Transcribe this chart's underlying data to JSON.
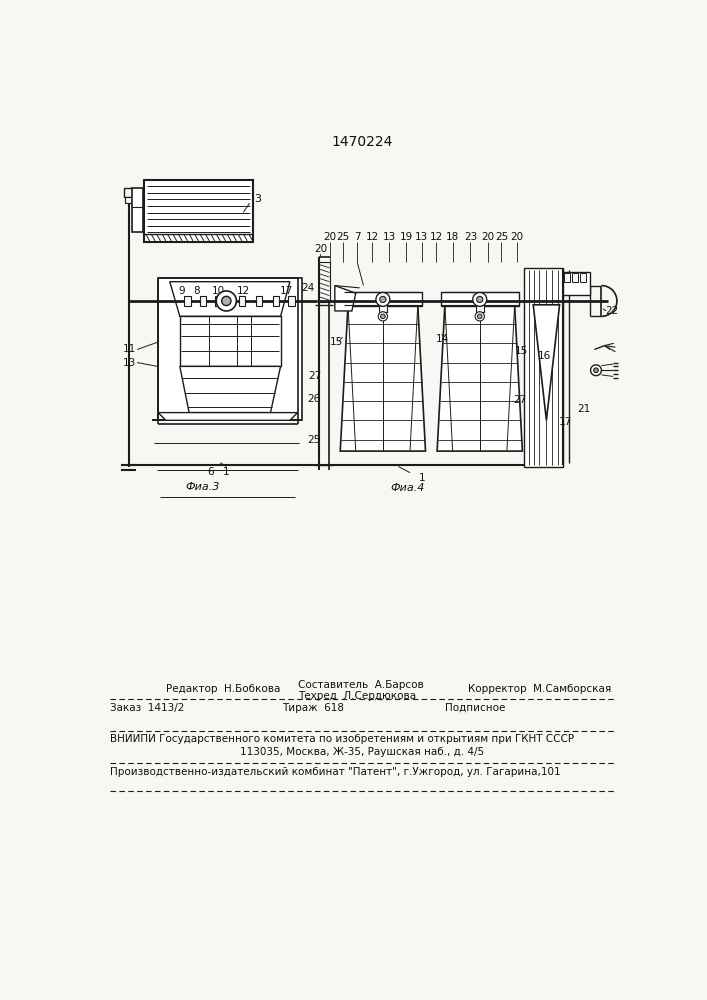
{
  "patent_number": "1470224",
  "background_color": "#f8f7f3",
  "fig3_label": "Фиа.3",
  "fig4_label": "Фиа.4",
  "editor_line": "Редактор  Н.Бобкова",
  "composer_line1": "Составитель  А.Барсов",
  "composer_line2": "Техред  Л.Сердюкова",
  "corrector_line": "Корректор  М.Самборская",
  "order_line": "Заказ  1413/2",
  "tirage_line": "Тираж  618",
  "podpisnoe_line": "Подписное",
  "vniip_line": "ВНИИПИ Государственного комитета по изобретениям и открытиям при ГКНТ СССР",
  "address_line": "113035, Москва, Ж-35, Раушская наб., д. 4/5",
  "factory_line": "Производственно-издательский комбинат \"Патент\", г.Ужгород, ул. Гагарина,101",
  "line_color": "#1c1c1c",
  "text_color": "#111111"
}
